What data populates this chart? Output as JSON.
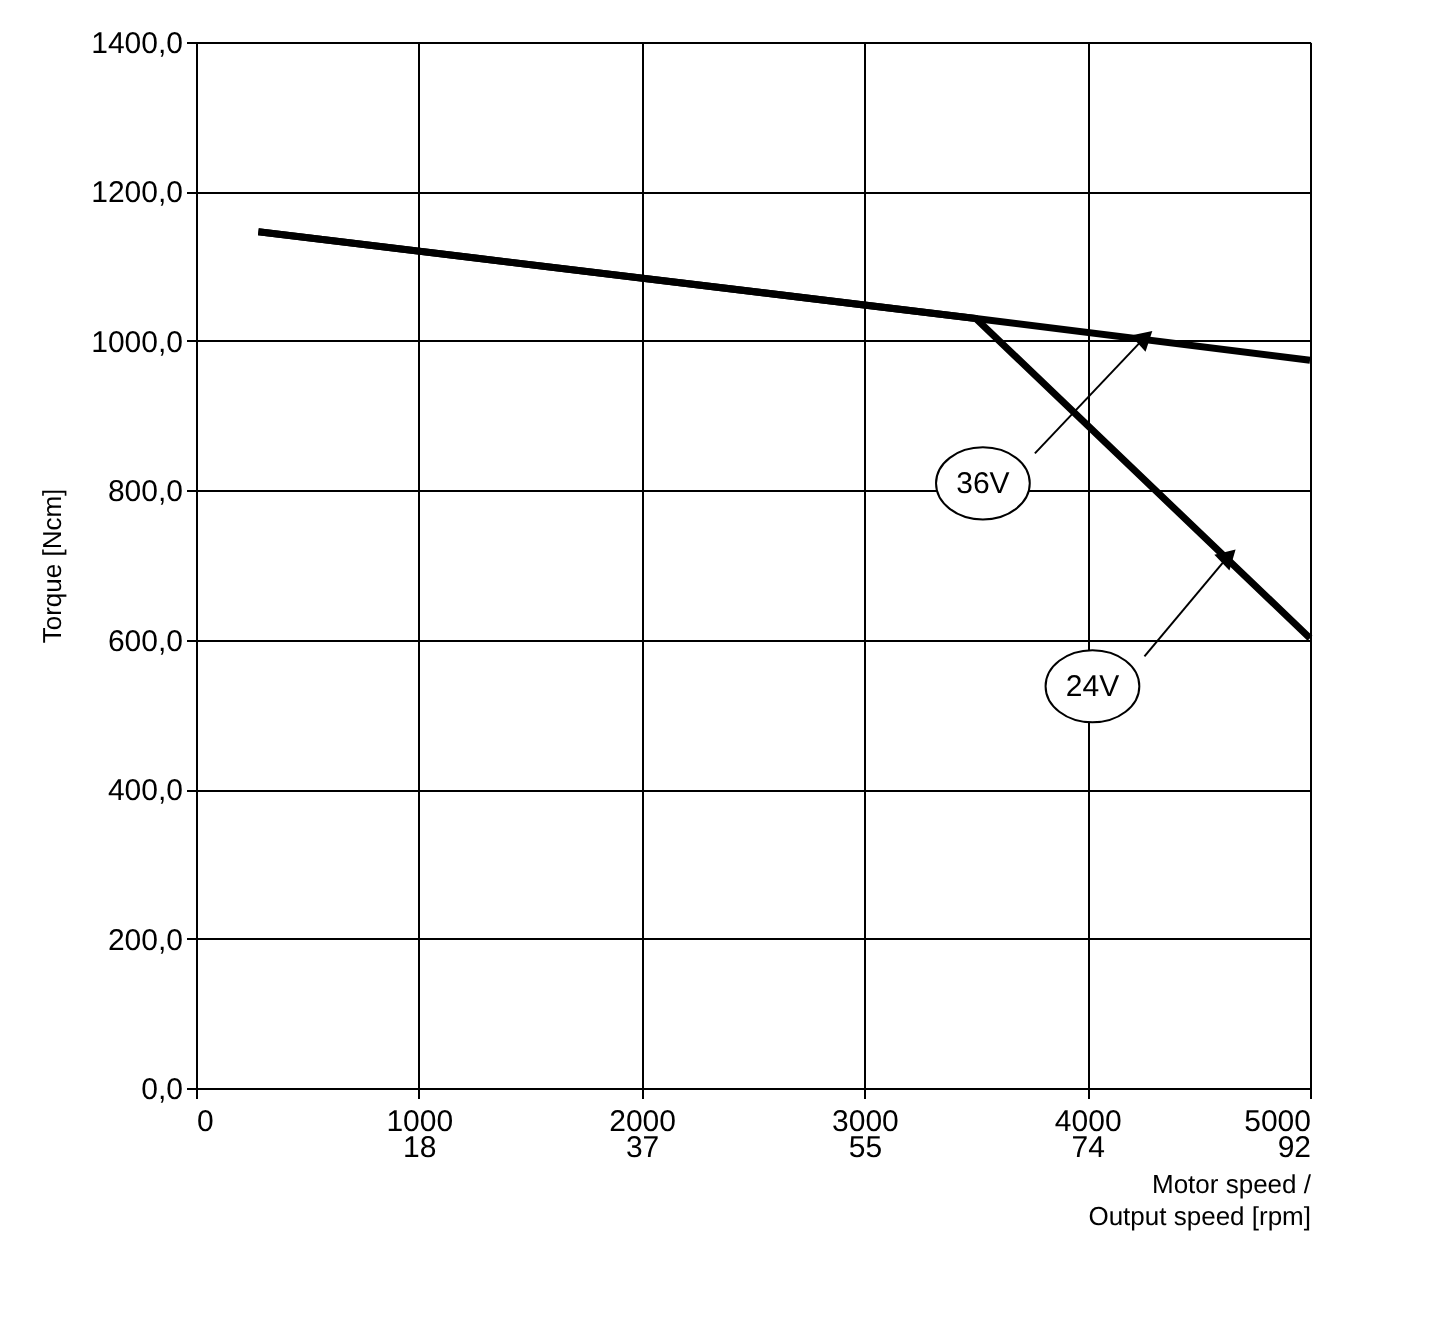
{
  "chart_data": {
    "type": "line",
    "xlabel": "Motor speed /",
    "x2label": "Output speed [rpm]",
    "ylabel": "Torque [Ncm]",
    "series": [
      {
        "name": "36V",
        "color": "#000000",
        "x": [
          280,
          3500,
          5000
        ],
        "values": [
          1146,
          1030,
          974
        ]
      },
      {
        "name": "24V",
        "color": "#000000",
        "x": [
          280,
          3500,
          5000
        ],
        "values": [
          1146,
          1030,
          602
        ]
      }
    ],
    "xlim": [
      0,
      5000
    ],
    "ylim": [
      0,
      1400
    ],
    "xticks": [
      0,
      1000,
      2000,
      3000,
      4000,
      5000
    ],
    "x2lim": [
      0,
      92
    ],
    "x2ticks": [
      {
        "value": 18.4,
        "label": "18"
      },
      {
        "value": 36.8,
        "label": "37"
      },
      {
        "value": 55.2,
        "label": "55"
      },
      {
        "value": 73.6,
        "label": "74"
      },
      {
        "value": 92,
        "label": "92"
      }
    ],
    "yticks": [
      {
        "value": 0,
        "label": "0,0"
      },
      {
        "value": 200,
        "label": "200,0"
      },
      {
        "value": 400,
        "label": "400,0"
      },
      {
        "value": 600,
        "label": "600,0"
      },
      {
        "value": 800,
        "label": "800,0"
      },
      {
        "value": 1000,
        "label": "1000,0"
      },
      {
        "value": 1200,
        "label": "1200,0"
      },
      {
        "value": 1400,
        "label": "1400,0"
      }
    ],
    "grid": true,
    "legend": false,
    "marker": "none",
    "line_style": "solid"
  }
}
